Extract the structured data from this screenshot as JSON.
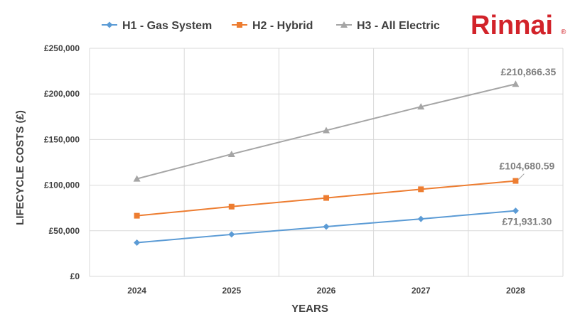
{
  "brand": {
    "name": "Rinnai",
    "mark": "®",
    "color": "#d2232a"
  },
  "chart_data": {
    "type": "line",
    "categories": [
      "2024",
      "2025",
      "2026",
      "2027",
      "2028"
    ],
    "xlabel": "YEARS",
    "ylabel": "LIFECYCLE COSTS (£)",
    "ylim": [
      0,
      250000
    ],
    "yticks": [
      0,
      50000,
      100000,
      150000,
      200000,
      250000
    ],
    "ytick_labels": [
      "£0",
      "£50,000",
      "£100,000",
      "£150,000",
      "£200,000",
      "£250,000"
    ],
    "grid": true,
    "legend_position": "top",
    "series": [
      {
        "name": "H1 - Gas System",
        "color": "#5b9bd5",
        "marker": "diamond",
        "values": [
          37000,
          46000,
          54500,
          63000,
          71931.3
        ],
        "end_label": "£71,931.30"
      },
      {
        "name": "H2 - Hybrid",
        "color": "#ed7d31",
        "marker": "square",
        "values": [
          66500,
          76500,
          86000,
          95500,
          104680.59
        ],
        "end_label": "£104,680.59"
      },
      {
        "name": "H3 - All Electric",
        "color": "#a5a5a5",
        "marker": "triangle",
        "values": [
          107000,
          134000,
          160000,
          186000,
          210866.35
        ],
        "end_label": "£210,866.35"
      }
    ]
  }
}
